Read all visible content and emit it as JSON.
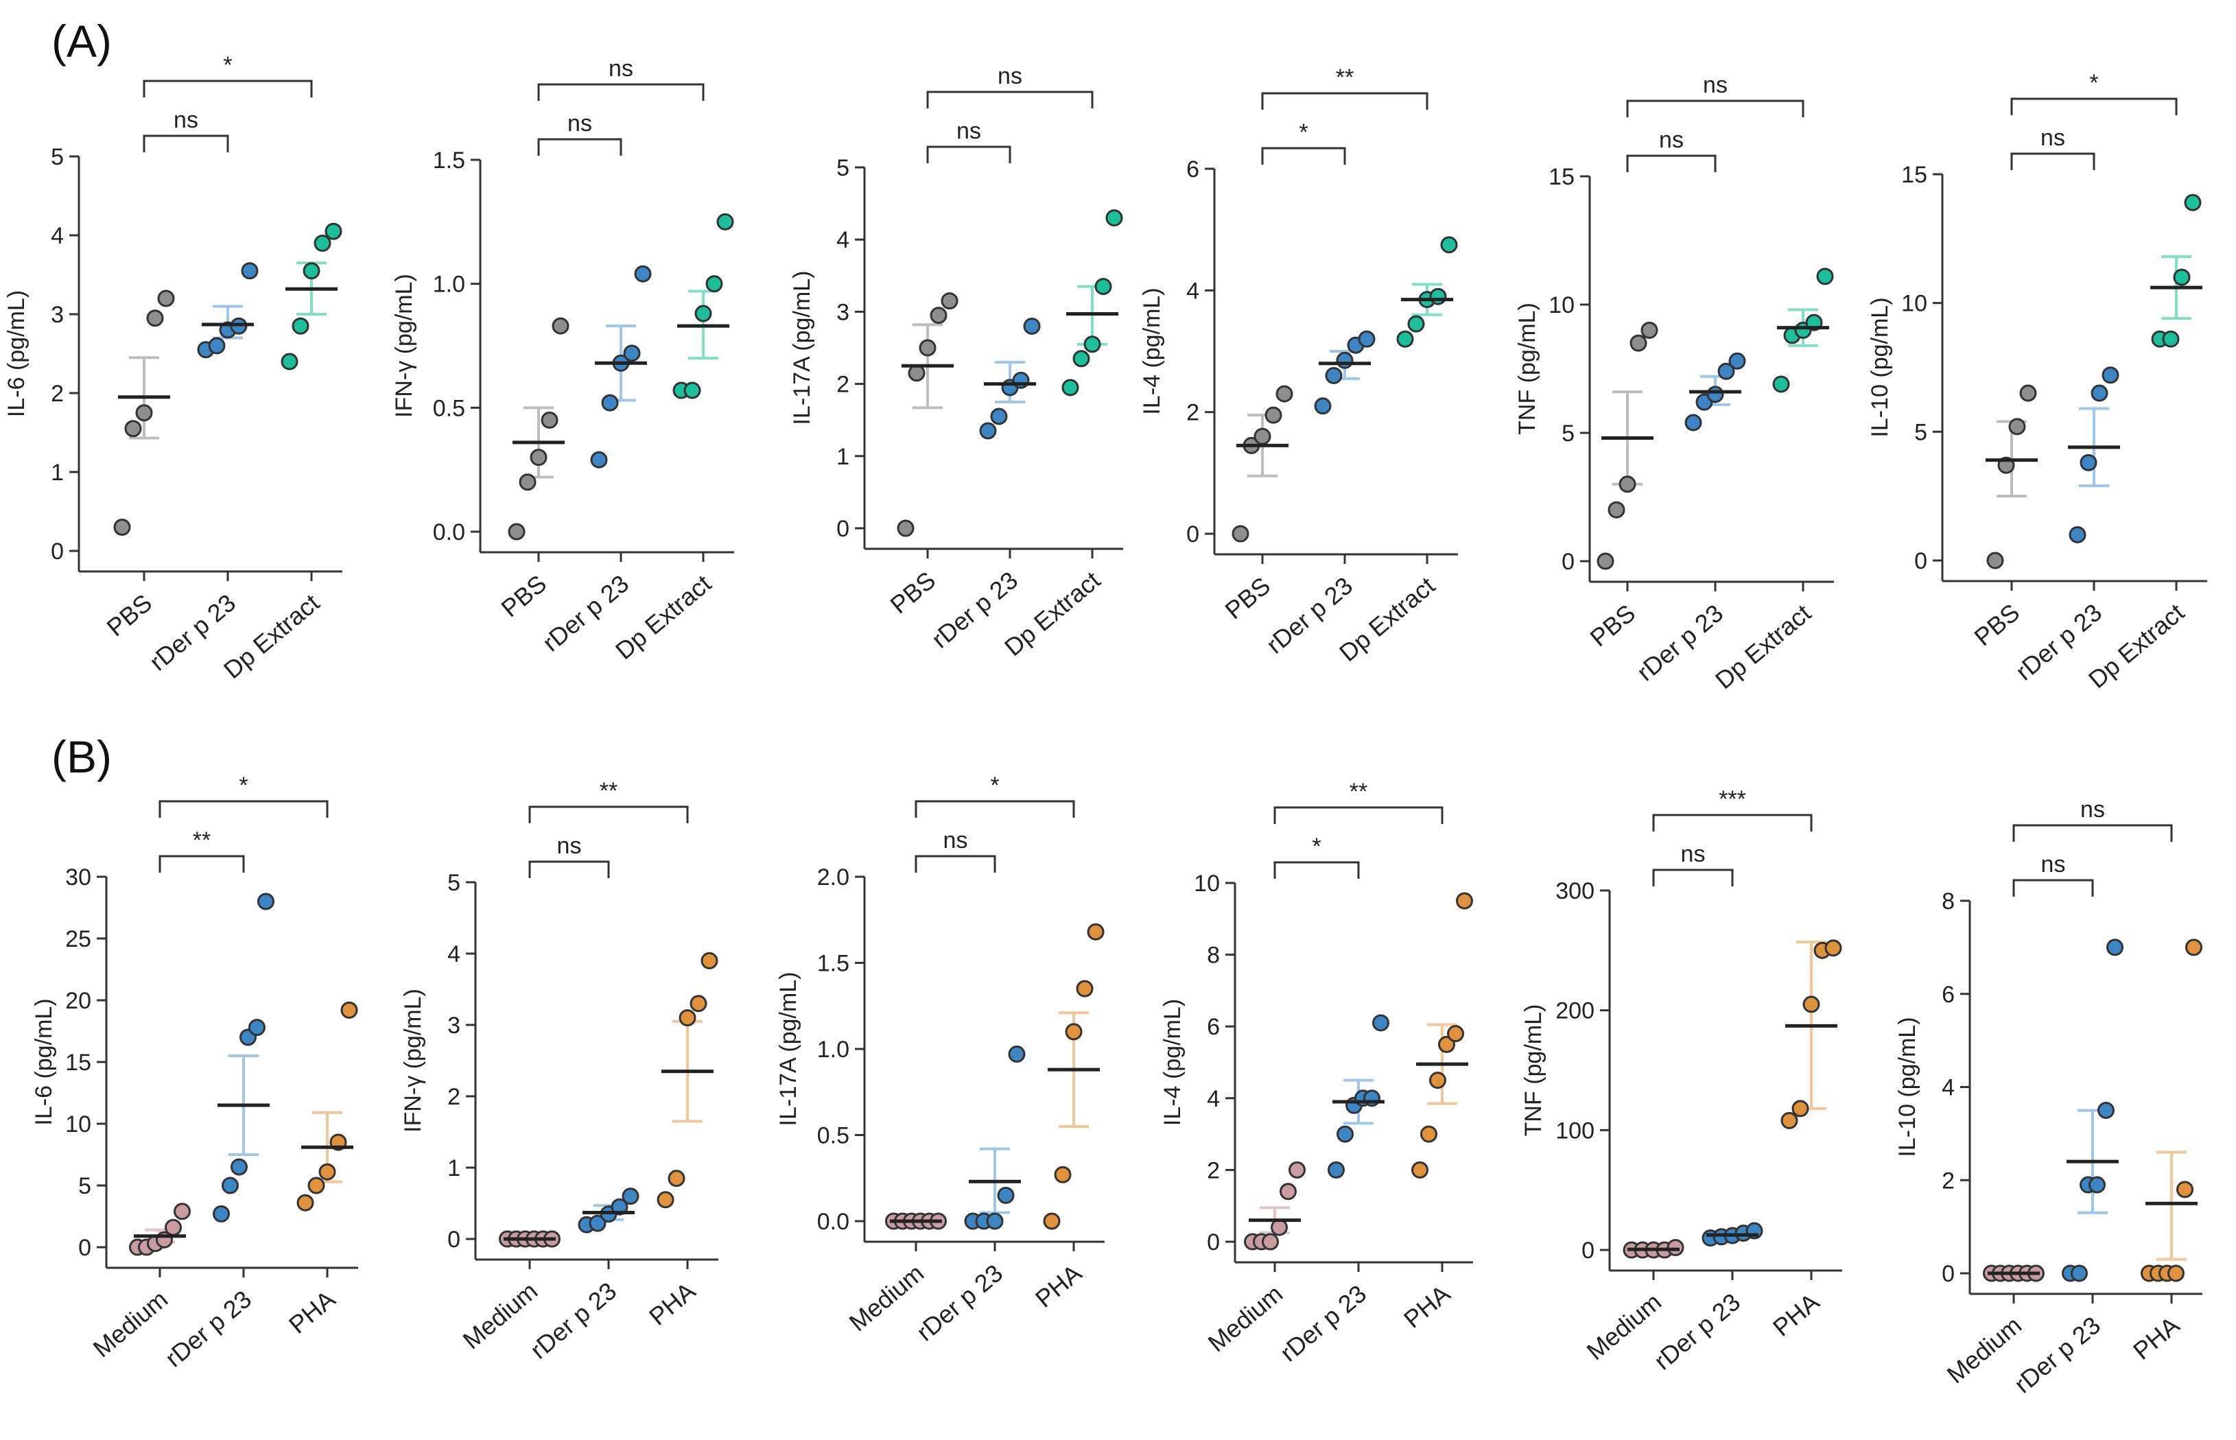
{
  "figure": {
    "panel_a_label": "(A)",
    "panel_b_label": "(B)"
  },
  "colors": {
    "grey": "#8e8e8e",
    "grey_bar": "#bdbdbd",
    "blue": "#3d86c6",
    "blue_bar": "#9cc6ea",
    "green": "#1bbf9a",
    "green_bar": "#7fe0c6",
    "mauve": "#c89ca0",
    "mauve_bar": "#e3c3c6",
    "orange": "#e0913c",
    "orange_bar": "#f2c696"
  },
  "chart_data": [
    {
      "type": "scatter",
      "panel": "A",
      "ylabel": "IL-6 (pg/mL)",
      "ylim": [
        0,
        5
      ],
      "yticks": [
        "0",
        "1",
        "2",
        "3",
        "4",
        "5"
      ],
      "categories": [
        "PBS",
        "rDer p 23",
        "Dp Extract"
      ],
      "series": [
        {
          "name": "PBS",
          "color": "grey",
          "points": [
            0.3,
            1.55,
            1.75,
            2.95,
            3.2
          ],
          "mean": 1.95,
          "sem": [
            1.43,
            2.45
          ]
        },
        {
          "name": "rDer p 23",
          "color": "blue",
          "points": [
            2.55,
            2.6,
            2.8,
            2.85,
            3.55
          ],
          "mean": 2.87,
          "sem": [
            2.7,
            3.1
          ]
        },
        {
          "name": "Dp Extract",
          "color": "green",
          "points": [
            2.4,
            2.85,
            3.55,
            3.9,
            4.05
          ],
          "mean": 3.32,
          "sem": [
            3.0,
            3.65
          ]
        }
      ],
      "brackets": [
        {
          "from": 0,
          "to": 1,
          "level": 0,
          "label": "ns"
        },
        {
          "from": 0,
          "to": 2,
          "level": 1,
          "label": "*"
        }
      ]
    },
    {
      "type": "scatter",
      "panel": "A",
      "ylabel": "IFN-γ (pg/mL)",
      "ylim": [
        0,
        1.5
      ],
      "yticks": [
        "0.0",
        "0.5",
        "1.0",
        "1.5"
      ],
      "categories": [
        "PBS",
        "rDer p 23",
        "Dp Extract"
      ],
      "series": [
        {
          "name": "PBS",
          "color": "grey",
          "points": [
            0.0,
            0.2,
            0.3,
            0.45,
            0.83
          ],
          "mean": 0.36,
          "sem": [
            0.22,
            0.5
          ]
        },
        {
          "name": "rDer p 23",
          "color": "blue",
          "points": [
            0.29,
            0.52,
            0.68,
            0.72,
            1.04
          ],
          "mean": 0.68,
          "sem": [
            0.53,
            0.83
          ]
        },
        {
          "name": "Dp Extract",
          "color": "green",
          "points": [
            0.57,
            0.57,
            0.88,
            1.0,
            1.25
          ],
          "mean": 0.83,
          "sem": [
            0.7,
            0.97
          ]
        }
      ],
      "brackets": [
        {
          "from": 0,
          "to": 1,
          "level": 0,
          "label": "ns"
        },
        {
          "from": 0,
          "to": 2,
          "level": 1,
          "label": "ns"
        }
      ]
    },
    {
      "type": "scatter",
      "panel": "A",
      "ylabel": "IL-17A (pg/mL)",
      "ylim": [
        0,
        5
      ],
      "yticks": [
        "0",
        "1",
        "2",
        "3",
        "4",
        "5"
      ],
      "categories": [
        "PBS",
        "rDer p 23",
        "Dp Extract"
      ],
      "series": [
        {
          "name": "PBS",
          "color": "grey",
          "points": [
            0.0,
            2.15,
            2.5,
            2.95,
            3.15
          ],
          "mean": 2.25,
          "sem": [
            1.67,
            2.82
          ]
        },
        {
          "name": "rDer p 23",
          "color": "blue",
          "points": [
            1.35,
            1.55,
            1.95,
            2.05,
            2.8
          ],
          "mean": 2.0,
          "sem": [
            1.75,
            2.3
          ]
        },
        {
          "name": "Dp Extract",
          "color": "green",
          "points": [
            1.95,
            2.35,
            2.55,
            3.35,
            4.3
          ],
          "mean": 2.97,
          "sem": [
            2.55,
            3.35
          ]
        }
      ],
      "brackets": [
        {
          "from": 0,
          "to": 1,
          "level": 0,
          "label": "ns"
        },
        {
          "from": 0,
          "to": 2,
          "level": 1,
          "label": "ns"
        }
      ]
    },
    {
      "type": "scatter",
      "panel": "A",
      "ylabel": "IL-4 (pg/mL)",
      "ylim": [
        0,
        6
      ],
      "yticks": [
        "0",
        "2",
        "4",
        "6"
      ],
      "categories": [
        "PBS",
        "rDer p 23",
        "Dp Extract"
      ],
      "series": [
        {
          "name": "PBS",
          "color": "grey",
          "points": [
            0.0,
            1.45,
            1.6,
            1.95,
            2.3
          ],
          "mean": 1.45,
          "sem": [
            0.95,
            1.95
          ]
        },
        {
          "name": "rDer p 23",
          "color": "blue",
          "points": [
            2.1,
            2.6,
            2.85,
            3.1,
            3.2
          ],
          "mean": 2.8,
          "sem": [
            2.55,
            3.0
          ]
        },
        {
          "name": "Dp Extract",
          "color": "green",
          "points": [
            3.2,
            3.45,
            3.85,
            3.9,
            4.75
          ],
          "mean": 3.85,
          "sem": [
            3.6,
            4.1
          ]
        }
      ],
      "brackets": [
        {
          "from": 0,
          "to": 1,
          "level": 0,
          "label": "*"
        },
        {
          "from": 0,
          "to": 2,
          "level": 1,
          "label": "**"
        }
      ]
    },
    {
      "type": "scatter",
      "panel": "A",
      "ylabel": "TNF (pg/mL)",
      "ylim": [
        0,
        15
      ],
      "yticks": [
        "0",
        "5",
        "10",
        "15"
      ],
      "categories": [
        "PBS",
        "rDer p 23",
        "Dp Extract"
      ],
      "series": [
        {
          "name": "PBS",
          "color": "grey",
          "points": [
            0.0,
            2.0,
            3.0,
            8.5,
            9.0
          ],
          "mean": 4.8,
          "sem": [
            3.0,
            6.6
          ]
        },
        {
          "name": "rDer p 23",
          "color": "blue",
          "points": [
            5.4,
            6.2,
            6.5,
            7.4,
            7.8
          ],
          "mean": 6.6,
          "sem": [
            6.1,
            7.2
          ]
        },
        {
          "name": "Dp Extract",
          "color": "green",
          "points": [
            6.9,
            8.8,
            9.0,
            9.3,
            11.1
          ],
          "mean": 9.1,
          "sem": [
            8.4,
            9.8
          ]
        }
      ],
      "brackets": [
        {
          "from": 0,
          "to": 1,
          "level": 0,
          "label": "ns"
        },
        {
          "from": 0,
          "to": 2,
          "level": 1,
          "label": "ns"
        }
      ]
    },
    {
      "type": "scatter",
      "panel": "A",
      "ylabel": "IL-10 (pg/mL)",
      "ylim": [
        0,
        15
      ],
      "yticks": [
        "0",
        "5",
        "10",
        "15"
      ],
      "categories": [
        "PBS",
        "rDer p 23",
        "Dp Extract"
      ],
      "series": [
        {
          "name": "PBS",
          "color": "grey",
          "points": [
            0.0,
            3.7,
            5.2,
            6.5
          ],
          "mean": 3.9,
          "sem": [
            2.5,
            5.4
          ]
        },
        {
          "name": "rDer p 23",
          "color": "blue",
          "points": [
            1.0,
            3.8,
            6.5,
            7.2
          ],
          "mean": 4.4,
          "sem": [
            2.9,
            5.9
          ]
        },
        {
          "name": "Dp Extract",
          "color": "green",
          "points": [
            8.6,
            8.6,
            11.0,
            13.9
          ],
          "mean": 10.6,
          "sem": [
            9.4,
            11.8
          ]
        }
      ],
      "brackets": [
        {
          "from": 0,
          "to": 1,
          "level": 0,
          "label": "ns"
        },
        {
          "from": 0,
          "to": 2,
          "level": 1,
          "label": "*"
        }
      ]
    },
    {
      "type": "scatter",
      "panel": "B",
      "ylabel": "IL-6 (pg/mL)",
      "ylim": [
        0,
        30
      ],
      "yticks": [
        "0",
        "5",
        "10",
        "15",
        "20",
        "25",
        "30"
      ],
      "categories": [
        "Medium",
        "rDer p 23",
        "PHA"
      ],
      "series": [
        {
          "name": "Medium",
          "color": "mauve",
          "points": [
            0.0,
            0.0,
            0.3,
            0.6,
            1.6,
            2.9
          ],
          "mean": 0.9,
          "sem": [
            0.4,
            1.4
          ]
        },
        {
          "name": "rDer p 23",
          "color": "blue",
          "points": [
            2.7,
            5.0,
            6.5,
            17.0,
            17.8,
            28.0
          ],
          "mean": 11.5,
          "sem": [
            7.5,
            15.5
          ]
        },
        {
          "name": "PHA",
          "color": "orange",
          "points": [
            3.6,
            5.0,
            6.1,
            8.5,
            19.2
          ],
          "mean": 8.1,
          "sem": [
            5.3,
            10.9
          ]
        }
      ],
      "brackets": [
        {
          "from": 0,
          "to": 1,
          "level": 0,
          "label": "**"
        },
        {
          "from": 0,
          "to": 2,
          "level": 1,
          "label": "*"
        }
      ]
    },
    {
      "type": "scatter",
      "panel": "B",
      "ylabel": "IFN-γ (pg/mL)",
      "ylim": [
        0,
        5
      ],
      "yticks": [
        "0",
        "1",
        "2",
        "3",
        "4",
        "5"
      ],
      "categories": [
        "Medium",
        "rDer p 23",
        "PHA"
      ],
      "series": [
        {
          "name": "Medium",
          "color": "mauve",
          "points": [
            0,
            0,
            0,
            0,
            0,
            0
          ],
          "mean": 0.0,
          "sem": [
            0.0,
            0.0
          ]
        },
        {
          "name": "rDer p 23",
          "color": "blue",
          "points": [
            0.2,
            0.22,
            0.35,
            0.45,
            0.6
          ],
          "mean": 0.37,
          "sem": [
            0.27,
            0.47
          ]
        },
        {
          "name": "PHA",
          "color": "orange",
          "points": [
            0.55,
            0.85,
            3.1,
            3.3,
            3.9
          ],
          "mean": 2.35,
          "sem": [
            1.65,
            3.05
          ]
        }
      ],
      "brackets": [
        {
          "from": 0,
          "to": 1,
          "level": 0,
          "label": "ns"
        },
        {
          "from": 0,
          "to": 2,
          "level": 1,
          "label": "**"
        }
      ]
    },
    {
      "type": "scatter",
      "panel": "B",
      "ylabel": "IL-17A (pg/mL)",
      "ylim": [
        0,
        2
      ],
      "yticks": [
        "0.0",
        "0.5",
        "1.0",
        "1.5",
        "2.0"
      ],
      "categories": [
        "Medium",
        "rDer p 23",
        "PHA"
      ],
      "series": [
        {
          "name": "Medium",
          "color": "mauve",
          "points": [
            0,
            0,
            0,
            0,
            0,
            0
          ],
          "mean": 0.0,
          "sem": [
            0.0,
            0.0
          ]
        },
        {
          "name": "rDer p 23",
          "color": "blue",
          "points": [
            0.0,
            0.0,
            0.0,
            0.15,
            0.97
          ],
          "mean": 0.23,
          "sem": [
            0.05,
            0.42
          ]
        },
        {
          "name": "PHA",
          "color": "orange",
          "points": [
            0.0,
            0.27,
            1.1,
            1.35,
            1.68
          ],
          "mean": 0.88,
          "sem": [
            0.55,
            1.21
          ]
        }
      ],
      "brackets": [
        {
          "from": 0,
          "to": 1,
          "level": 0,
          "label": "ns"
        },
        {
          "from": 0,
          "to": 2,
          "level": 1,
          "label": "*"
        }
      ]
    },
    {
      "type": "scatter",
      "panel": "B",
      "ylabel": "IL-4 (pg/mL)",
      "ylim": [
        0,
        10
      ],
      "yticks": [
        "0",
        "2",
        "4",
        "6",
        "8",
        "10"
      ],
      "categories": [
        "Medium",
        "rDer p 23",
        "PHA"
      ],
      "series": [
        {
          "name": "Medium",
          "color": "mauve",
          "points": [
            0.0,
            0.0,
            0.0,
            0.4,
            1.4,
            2.0
          ],
          "mean": 0.6,
          "sem": [
            0.25,
            0.95
          ]
        },
        {
          "name": "rDer p 23",
          "color": "blue",
          "points": [
            2.0,
            3.0,
            3.8,
            4.0,
            4.0,
            6.1
          ],
          "mean": 3.9,
          "sem": [
            3.3,
            4.5
          ]
        },
        {
          "name": "PHA",
          "color": "orange",
          "points": [
            2.0,
            3.0,
            4.5,
            5.5,
            5.8,
            9.5
          ],
          "mean": 4.95,
          "sem": [
            3.85,
            6.05
          ]
        }
      ],
      "brackets": [
        {
          "from": 0,
          "to": 1,
          "level": 0,
          "label": "*"
        },
        {
          "from": 0,
          "to": 2,
          "level": 1,
          "label": "**"
        }
      ]
    },
    {
      "type": "scatter",
      "panel": "B",
      "ylabel": "TNF (pg/mL)",
      "ylim": [
        0,
        300
      ],
      "yticks": [
        "0",
        "100",
        "200",
        "300"
      ],
      "categories": [
        "Medium",
        "rDer p 23",
        "PHA"
      ],
      "series": [
        {
          "name": "Medium",
          "color": "mauve",
          "points": [
            0,
            0,
            0,
            0,
            2
          ],
          "mean": 0.5,
          "sem": [
            0.0,
            1.0
          ]
        },
        {
          "name": "rDer p 23",
          "color": "blue",
          "points": [
            10,
            11,
            12,
            14,
            16
          ],
          "mean": 12.5,
          "sem": [
            10.0,
            15.0
          ]
        },
        {
          "name": "PHA",
          "color": "orange",
          "points": [
            108,
            118,
            205,
            250,
            252
          ],
          "mean": 187,
          "sem": [
            118,
            257
          ]
        }
      ],
      "brackets": [
        {
          "from": 0,
          "to": 1,
          "level": 0,
          "label": "ns"
        },
        {
          "from": 0,
          "to": 2,
          "level": 1,
          "label": "***"
        }
      ]
    },
    {
      "type": "scatter",
      "panel": "B",
      "ylabel": "IL-10 (pg/mL)",
      "ylim": [
        0,
        8
      ],
      "yticks": [
        "0",
        "2",
        "4",
        "6",
        "8"
      ],
      "categories": [
        "Medium",
        "rDer p 23",
        "PHA"
      ],
      "series": [
        {
          "name": "Medium",
          "color": "mauve",
          "points": [
            0,
            0,
            0,
            0,
            0,
            0
          ],
          "mean": 0.0,
          "sem": [
            0.0,
            0.0
          ]
        },
        {
          "name": "rDer p 23",
          "color": "blue",
          "points": [
            0.0,
            0.0,
            1.9,
            1.9,
            3.5,
            7.0
          ],
          "mean": 2.4,
          "sem": [
            1.3,
            3.5
          ]
        },
        {
          "name": "PHA",
          "color": "orange",
          "points": [
            0.0,
            0.0,
            0.0,
            0.0,
            1.8,
            7.0
          ],
          "mean": 1.5,
          "sem": [
            0.3,
            2.6
          ]
        }
      ],
      "brackets": [
        {
          "from": 0,
          "to": 1,
          "level": 0,
          "label": "ns"
        },
        {
          "from": 0,
          "to": 2,
          "level": 1,
          "label": "ns"
        }
      ]
    }
  ]
}
